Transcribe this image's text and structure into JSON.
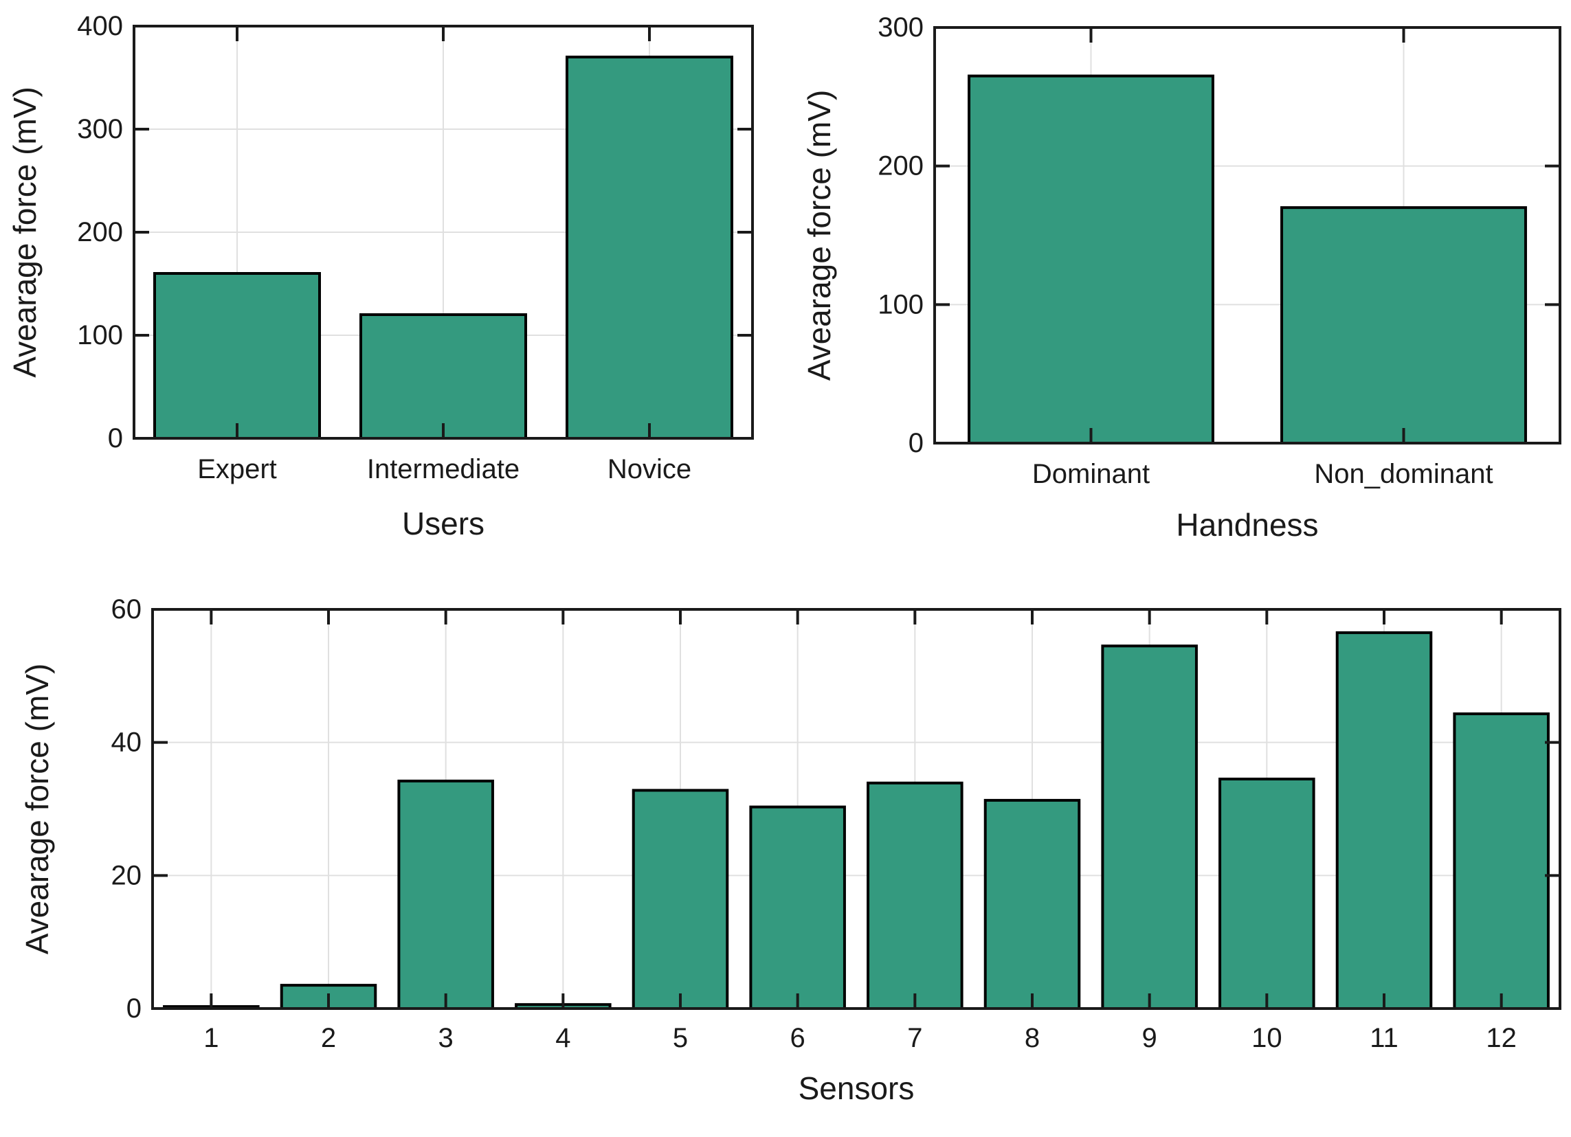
{
  "figure": {
    "background": "#ffffff",
    "bar_color": "#349a7f",
    "bar_edge_color": "#000000",
    "axis_color": "#1a1a1a",
    "grid_color": "#e0e0e0",
    "text_color": "#1a1a1a"
  },
  "chart_data": [
    {
      "id": "users",
      "type": "bar",
      "title": "",
      "xlabel": "Users",
      "ylabel": "Avearage force (mV)",
      "categories": [
        "Expert",
        "Intermediate",
        "Novice"
      ],
      "values": [
        160,
        120,
        370
      ],
      "ylim": [
        0,
        400
      ],
      "yticks": [
        0,
        100,
        200,
        300,
        400
      ],
      "grid": true,
      "legend": "none"
    },
    {
      "id": "handness",
      "type": "bar",
      "title": "",
      "xlabel": "Handness",
      "ylabel": "Avearage force (mV)",
      "categories": [
        "Dominant",
        "Non_dominant"
      ],
      "values": [
        265,
        170
      ],
      "ylim": [
        0,
        300
      ],
      "yticks": [
        0,
        100,
        200,
        300
      ],
      "grid": true,
      "legend": "none"
    },
    {
      "id": "sensors",
      "type": "bar",
      "title": "",
      "xlabel": "Sensors",
      "ylabel": "Avearage force (mV)",
      "categories": [
        "1",
        "2",
        "3",
        "4",
        "5",
        "6",
        "7",
        "8",
        "9",
        "10",
        "11",
        "12"
      ],
      "values": [
        0.3,
        3.5,
        34.2,
        0.6,
        32.8,
        30.3,
        33.9,
        31.3,
        54.5,
        34.5,
        56.5,
        44.3
      ],
      "ylim": [
        0,
        60
      ],
      "yticks": [
        0,
        20,
        40,
        60
      ],
      "grid": true,
      "legend": "none"
    }
  ]
}
